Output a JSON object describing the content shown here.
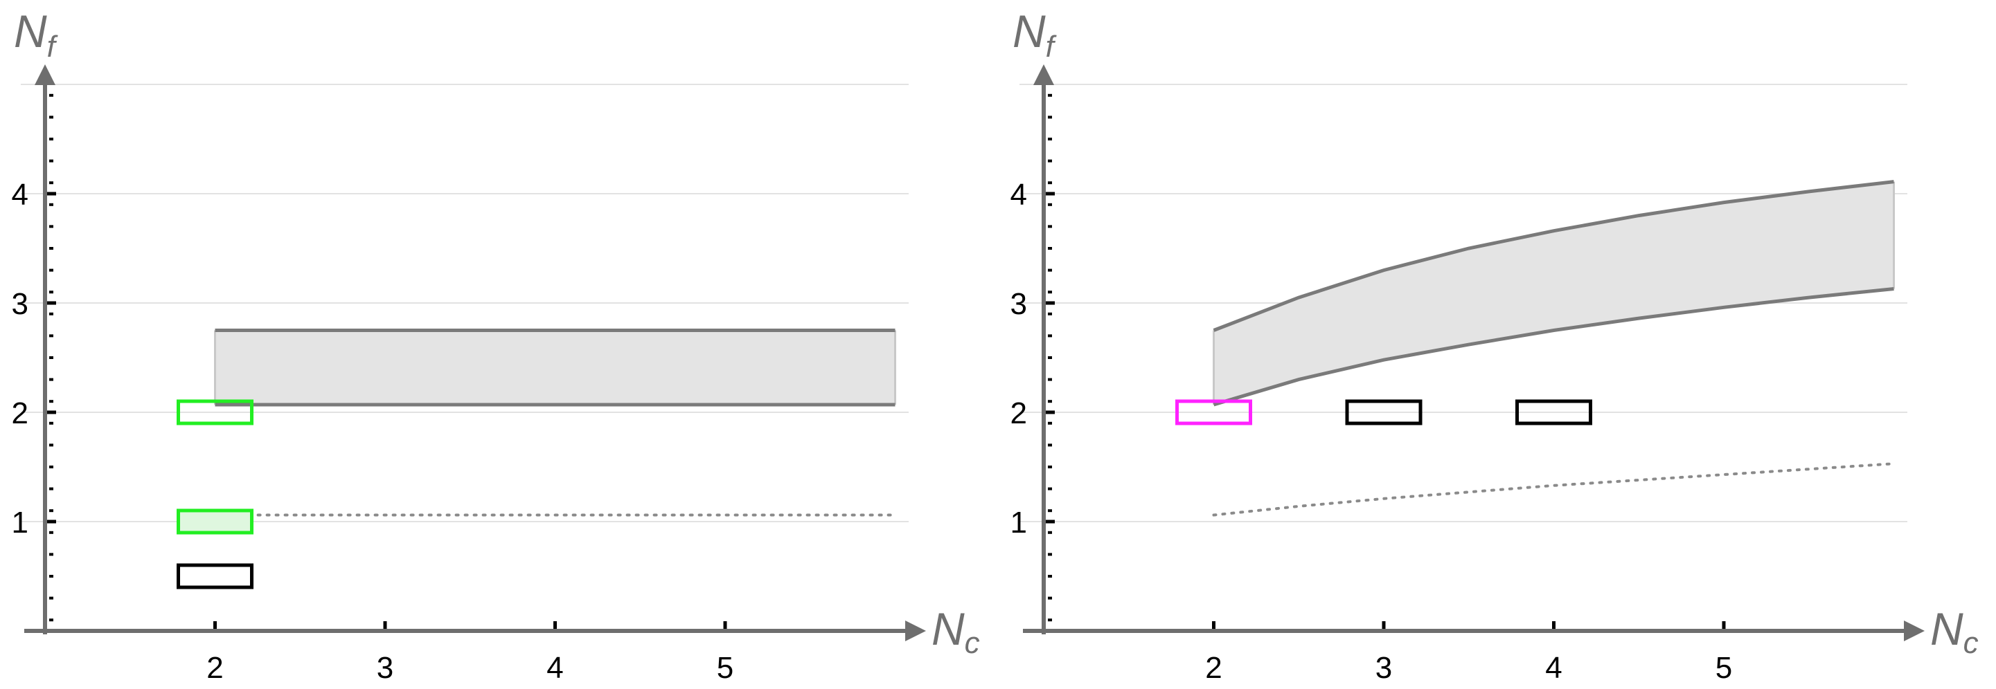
{
  "chart_data": [
    {
      "type": "area",
      "xlabel": "N",
      "xlabel_sub": "c",
      "ylabel": "N",
      "ylabel_sub": "f",
      "xlim": [
        1.0,
        6.05
      ],
      "ylim": [
        0,
        5.0
      ],
      "xticks": [
        "2",
        "3",
        "4",
        "5"
      ],
      "yticks": [
        "1",
        "2",
        "3",
        "4"
      ],
      "grid": "horizontal",
      "band": {
        "x": [
          2.0,
          6.0
        ],
        "lower": [
          2.07,
          2.07
        ],
        "upper": [
          2.75,
          2.75
        ]
      },
      "dotted": {
        "x": [
          2.2,
          6.0
        ],
        "y": [
          1.06,
          1.06
        ]
      },
      "markers": [
        {
          "x": 2.0,
          "y": 2.0,
          "color": "#22ee22",
          "filled": false
        },
        {
          "x": 2.0,
          "y": 1.0,
          "color": "#22ee22",
          "filled": true
        },
        {
          "x": 2.0,
          "y": 0.5,
          "color": "#000000",
          "filled": false
        }
      ]
    },
    {
      "type": "area",
      "xlabel": "N",
      "xlabel_sub": "c",
      "ylabel": "N",
      "ylabel_sub": "f",
      "xlim": [
        1.0,
        6.05
      ],
      "ylim": [
        0,
        5.0
      ],
      "xticks": [
        "2",
        "3",
        "4",
        "5"
      ],
      "yticks": [
        "1",
        "2",
        "3",
        "4"
      ],
      "grid": "horizontal",
      "band": {
        "x": [
          2.0,
          2.5,
          3.0,
          3.5,
          4.0,
          4.5,
          5.0,
          5.5,
          6.0
        ],
        "lower": [
          2.07,
          2.3,
          2.48,
          2.62,
          2.75,
          2.86,
          2.96,
          3.05,
          3.13
        ],
        "upper": [
          2.75,
          3.05,
          3.3,
          3.5,
          3.66,
          3.8,
          3.92,
          4.02,
          4.11
        ]
      },
      "dotted": {
        "x": [
          2.0,
          2.5,
          3.0,
          3.5,
          4.0,
          4.5,
          5.0,
          5.5,
          6.0
        ],
        "y": [
          1.06,
          1.14,
          1.21,
          1.27,
          1.33,
          1.38,
          1.43,
          1.48,
          1.53
        ]
      },
      "markers": [
        {
          "x": 2.0,
          "y": 2.0,
          "color": "#ff22ff",
          "filled": false
        },
        {
          "x": 3.0,
          "y": 2.0,
          "color": "#000000",
          "filled": false
        },
        {
          "x": 4.0,
          "y": 2.0,
          "color": "#000000",
          "filled": false
        }
      ]
    }
  ]
}
